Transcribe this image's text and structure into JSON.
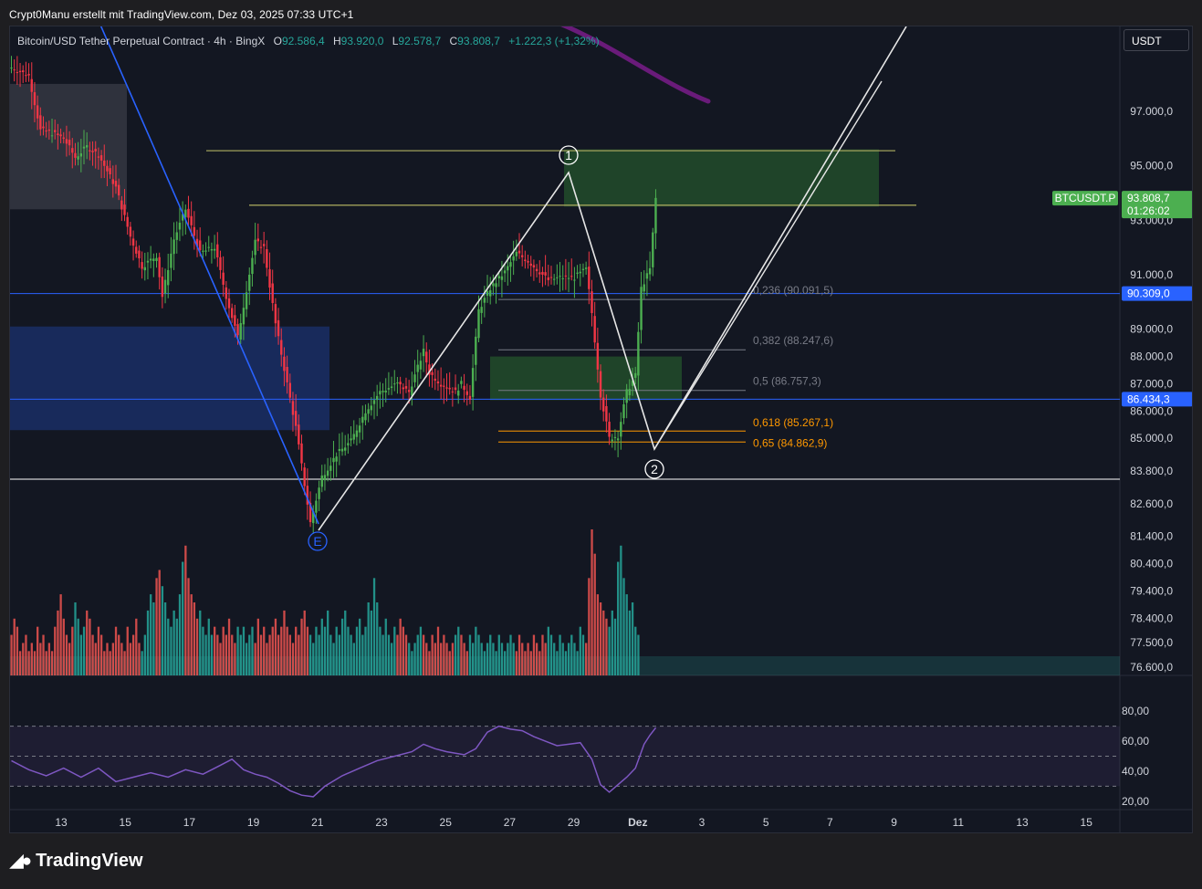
{
  "header": {
    "author_line": "Crypt0Manu erstellt mit TradingView.com, Dez 03, 2025 07:33 UTC+1"
  },
  "legend": {
    "symbol": "Bitcoin/USD Tether Perpetual Contract · 4h · BingX",
    "open_label": "O",
    "open": "92.586,4",
    "high_label": "H",
    "high": "93.920,0",
    "low_label": "L",
    "low": "92.578,7",
    "close_label": "C",
    "close": "93.808,7",
    "change": "+1.222,3 (+1,32%)"
  },
  "currency_selector": "USDT",
  "footer": {
    "brand": "TradingView"
  },
  "colors": {
    "background": "#131722",
    "up": "#4caf50",
    "down": "#f23645",
    "vol_up": "#26a69a",
    "vol_down": "#ef5350",
    "rsi": "#7e57c2",
    "blue_line": "#2962ff",
    "fib_orange": "#ff9800"
  },
  "chart_data": [
    {
      "type": "candlestick",
      "title": "Bitcoin/USD Tether Perpetual Contract · 4h · BingX",
      "ylim": [
        76000,
        98600
      ],
      "price_axis_ticks": [
        "97.000,0",
        "95.000,0",
        "93.000,0",
        "91.000,0",
        "89.000,0",
        "88.000,0",
        "87.000,0",
        "86.000,0",
        "85.000,0",
        "83.800,0",
        "82.600,0",
        "81.400,0",
        "80.400,0",
        "79.400,0",
        "78.400,0",
        "77.500,0",
        "76.600,0"
      ],
      "time_axis_ticks": [
        "13",
        "15",
        "17",
        "19",
        "21",
        "23",
        "25",
        "27",
        "29",
        "Dez",
        "3",
        "5",
        "7",
        "9",
        "11",
        "13",
        "15"
      ],
      "close_path": [
        [
          0,
          98600
        ],
        [
          2,
          98500
        ],
        [
          6,
          98300
        ],
        [
          10,
          96300
        ],
        [
          14,
          96200
        ],
        [
          18,
          96000
        ],
        [
          22,
          95300
        ],
        [
          26,
          95700
        ],
        [
          30,
          95400
        ],
        [
          36,
          94200
        ],
        [
          41,
          92400
        ],
        [
          45,
          91300
        ],
        [
          50,
          91700
        ],
        [
          52,
          90200
        ],
        [
          56,
          92300
        ],
        [
          60,
          93400
        ],
        [
          65,
          91800
        ],
        [
          70,
          92000
        ],
        [
          74,
          90200
        ],
        [
          78,
          88700
        ],
        [
          84,
          92200
        ],
        [
          87,
          92000
        ],
        [
          91,
          89200
        ],
        [
          95,
          87000
        ],
        [
          98,
          85400
        ],
        [
          101,
          83300
        ],
        [
          103,
          81900
        ],
        [
          107,
          83600
        ],
        [
          112,
          84400
        ],
        [
          117,
          84900
        ],
        [
          122,
          86000
        ],
        [
          127,
          86700
        ],
        [
          133,
          87000
        ],
        [
          137,
          86700
        ],
        [
          142,
          88200
        ],
        [
          144,
          87400
        ],
        [
          148,
          87000
        ],
        [
          153,
          86700
        ],
        [
          155,
          87000
        ],
        [
          158,
          86500
        ],
        [
          161,
          89700
        ],
        [
          165,
          90500
        ],
        [
          170,
          91100
        ],
        [
          174,
          91800
        ],
        [
          178,
          91500
        ],
        [
          181,
          91200
        ],
        [
          185,
          90800
        ],
        [
          189,
          90900
        ],
        [
          194,
          90900
        ],
        [
          198,
          91200
        ],
        [
          200,
          89600
        ],
        [
          203,
          86600
        ],
        [
          206,
          85000
        ],
        [
          209,
          85100
        ],
        [
          212,
          86700
        ],
        [
          215,
          87300
        ],
        [
          217,
          90500
        ],
        [
          220,
          91200
        ],
        [
          222,
          93800
        ]
      ],
      "last_price": "93.808,7",
      "last_price_tag": "BTCUSDT.P",
      "countdown": "01:26:02",
      "horizontal_lines": [
        {
          "price": 90309,
          "label": "90.309,0",
          "color": "#2962ff"
        },
        {
          "price": 86434.3,
          "label": "86.434,3",
          "color": "#2962ff"
        },
        {
          "price": 83500,
          "color": "#ffffff"
        }
      ],
      "fibonacci": [
        {
          "text": "0,236 (90.091,5)",
          "price": 90091.5
        },
        {
          "text": "0,382 (88.247,6)",
          "price": 88247.6
        },
        {
          "text": "0,5 (86.757,3)",
          "price": 86757.3
        },
        {
          "text": "0,618 (85.267,1)",
          "price": 85267.1
        },
        {
          "text": "0,65 (84.862,9)",
          "price": 84862.9
        }
      ],
      "wave_labels": [
        "1",
        "2",
        "E"
      ],
      "zones": [
        {
          "kind": "supply",
          "from": 93500,
          "to": 95600
        },
        {
          "kind": "demand",
          "from": 86400,
          "to": 88000
        },
        {
          "kind": "blue-box",
          "from": 85300,
          "to": 89100
        },
        {
          "kind": "grey-box",
          "from": 93400,
          "to": 98000
        }
      ]
    },
    {
      "type": "bar",
      "title": "Volume",
      "values": [
        5,
        7,
        6,
        3,
        4,
        5,
        3,
        4,
        3,
        6,
        4,
        5,
        3,
        4,
        3,
        6,
        8,
        10,
        7,
        5,
        4,
        6,
        9,
        7,
        5,
        6,
        8,
        7,
        5,
        4,
        6,
        5,
        3,
        4,
        3,
        4,
        6,
        5,
        4,
        3,
        6,
        4,
        5,
        7,
        4,
        3,
        5,
        8,
        10,
        9,
        12,
        13,
        11,
        9,
        7,
        6,
        8,
        7,
        10,
        14,
        16,
        12,
        10,
        9,
        7,
        8,
        6,
        5,
        7,
        5,
        6,
        5,
        4,
        6,
        5,
        7,
        5,
        4,
        6,
        5,
        6,
        4,
        5,
        6,
        4,
        7,
        5,
        6,
        4,
        5,
        6,
        7,
        5,
        6,
        8,
        6,
        5,
        4,
        6,
        5,
        7,
        8,
        6,
        5,
        4,
        6,
        5,
        7,
        6,
        8,
        5,
        4,
        6,
        5,
        7,
        8,
        6,
        5,
        4,
        6,
        7,
        5,
        6,
        9,
        8,
        12,
        9,
        6,
        5,
        7,
        5,
        4,
        6,
        5,
        7,
        6,
        5,
        4,
        3,
        4,
        5,
        6,
        5,
        4,
        3,
        5,
        4,
        6,
        4,
        5,
        4,
        3,
        4,
        5,
        6,
        5,
        4,
        3,
        5,
        4,
        6,
        5,
        4,
        3,
        4,
        5,
        4,
        3,
        5,
        4,
        3,
        4,
        5,
        4,
        3,
        5,
        4,
        3,
        4,
        3,
        5,
        4,
        3,
        5,
        4,
        6,
        5,
        4,
        3,
        5,
        4,
        3,
        4,
        5,
        4,
        3,
        6,
        5,
        4,
        12,
        18,
        15,
        10,
        9,
        8,
        7,
        6,
        8,
        7,
        14,
        16,
        12,
        10,
        8,
        9,
        6,
        5
      ]
    },
    {
      "type": "line",
      "title": "RSI",
      "ylim": [
        15,
        85
      ],
      "y_ticks": [
        "80,00",
        "60,00",
        "40,00",
        "20,00"
      ],
      "bands": [
        70,
        50,
        30
      ],
      "values": [
        [
          0,
          47
        ],
        [
          6,
          41
        ],
        [
          12,
          37
        ],
        [
          18,
          42
        ],
        [
          24,
          36
        ],
        [
          30,
          42
        ],
        [
          36,
          33
        ],
        [
          42,
          36
        ],
        [
          48,
          39
        ],
        [
          54,
          36
        ],
        [
          60,
          41
        ],
        [
          66,
          38
        ],
        [
          72,
          44
        ],
        [
          76,
          48
        ],
        [
          80,
          41
        ],
        [
          84,
          38
        ],
        [
          88,
          36
        ],
        [
          92,
          32
        ],
        [
          96,
          27
        ],
        [
          100,
          24
        ],
        [
          104,
          23
        ],
        [
          108,
          30
        ],
        [
          114,
          37
        ],
        [
          120,
          42
        ],
        [
          126,
          47
        ],
        [
          132,
          50
        ],
        [
          138,
          53
        ],
        [
          142,
          58
        ],
        [
          146,
          55
        ],
        [
          150,
          53
        ],
        [
          156,
          51
        ],
        [
          160,
          55
        ],
        [
          164,
          66
        ],
        [
          168,
          70
        ],
        [
          172,
          68
        ],
        [
          176,
          67
        ],
        [
          180,
          63
        ],
        [
          184,
          60
        ],
        [
          188,
          57
        ],
        [
          192,
          58
        ],
        [
          196,
          59
        ],
        [
          200,
          48
        ],
        [
          203,
          31
        ],
        [
          206,
          26
        ],
        [
          209,
          31
        ],
        [
          212,
          36
        ],
        [
          215,
          42
        ],
        [
          218,
          58
        ],
        [
          220,
          64
        ],
        [
          222,
          69
        ]
      ]
    }
  ]
}
